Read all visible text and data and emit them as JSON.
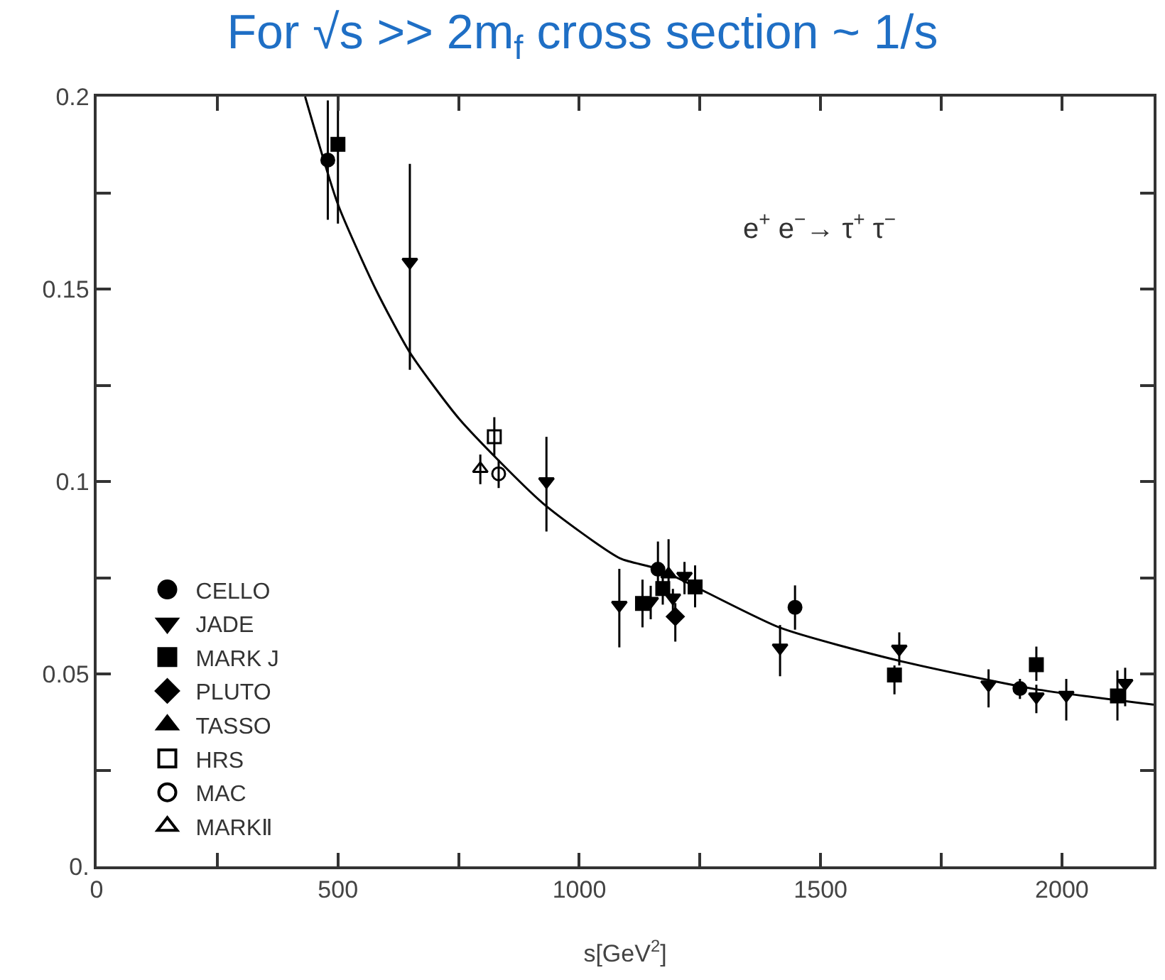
{
  "chart_data": {
    "type": "scatter",
    "title": "For √s >> 2m$_{f}$ cross section ~ 1/s",
    "xlabel": "s[GeV$^{2}$]",
    "annotations": [
      "e$^{+}$ e$^{−}$→ τ$^{+}$ τ$^{−}$"
    ],
    "xlim": [
      0,
      2190
    ],
    "ylim": [
      0,
      0.2
    ],
    "xticks": [
      0,
      {
        "value": 250,
        "label": null
      },
      500,
      {
        "value": 750,
        "label": null
      },
      1000,
      {
        "value": 1250,
        "label": null
      },
      1500,
      {
        "value": 1750,
        "label": null
      },
      2000
    ],
    "yticks": [
      {
        "value": 0,
        "label": "0."
      },
      {
        "value": 0.025,
        "label": null
      },
      0.05,
      {
        "value": 0.075,
        "label": null
      },
      0.1,
      {
        "value": 0.125,
        "label": null
      },
      0.15,
      {
        "value": 0.175,
        "label": null
      },
      0.2
    ],
    "legend": "bottom left",
    "series": [
      {
        "name": "CELLO",
        "color": "#000000",
        "marker": "circle",
        "x": [
          479,
          1163,
          1447,
          1913
        ],
        "values": [
          0.1835,
          0.0772,
          0.0673,
          0.0462
        ],
        "errors": [
          [
            0.168,
            0.199
          ],
          [
            0.0732,
            0.0844
          ],
          [
            0.0615,
            0.073
          ],
          [
            0.0435,
            0.0487
          ]
        ]
      },
      {
        "name": "JADE",
        "color": "#000000",
        "marker": "triangle-down",
        "x": [
          649,
          932,
          1083,
          1148,
          1194,
          1218,
          1416,
          1663,
          1848,
          1947,
          2009,
          2131
        ],
        "values": [
          0.157,
          0.1,
          0.0679,
          0.0689,
          0.0698,
          0.0754,
          0.0568,
          0.0565,
          0.0472,
          0.0441,
          0.0445,
          0.0476
        ],
        "errors": [
          [
            0.129,
            0.1825
          ],
          [
            0.087,
            0.1116
          ],
          [
            0.0569,
            0.0773
          ],
          [
            0.0642,
            0.0729
          ],
          [
            0.0665,
            0.0721
          ],
          [
            0.0707,
            0.0791
          ],
          [
            0.0494,
            0.0627
          ],
          [
            0.0522,
            0.0608
          ],
          [
            0.0413,
            0.0512
          ],
          [
            0.0398,
            0.0472
          ],
          [
            0.0379,
            0.0487
          ],
          [
            0.0416,
            0.0516
          ]
        ]
      },
      {
        "name": "MARK J",
        "color": "#000000",
        "marker": "square",
        "x": [
          500,
          1131,
          1173,
          1240,
          1653,
          1947,
          2115
        ],
        "values": [
          0.1876,
          0.0683,
          0.0722,
          0.0726,
          0.0497,
          0.0524,
          0.0443
        ],
        "errors": [
          [
            0.167,
            0.2
          ],
          [
            0.0621,
            0.0745
          ],
          [
            0.068,
            0.0762
          ],
          [
            0.0673,
            0.0782
          ],
          [
            0.0447,
            0.0522
          ],
          [
            0.0482,
            0.0571
          ],
          [
            0.0379,
            0.0509
          ]
        ]
      },
      {
        "name": "PLUTO",
        "color": "#000000",
        "marker": "diamond",
        "x": [
          1199
        ],
        "values": [
          0.0649
        ],
        "errors": [
          [
            0.0584,
            0.0684
          ]
        ]
      },
      {
        "name": "TASSO",
        "color": "#000000",
        "marker": "triangle",
        "x": [
          1185
        ],
        "values": [
          0.0759
        ],
        "errors": [
          [
            0.0707,
            0.085
          ]
        ]
      },
      {
        "name": "HRS",
        "color": "#000000",
        "marker": "square-open",
        "x": [
          824
        ],
        "values": [
          0.1116
        ],
        "errors": [
          [
            0.1067,
            0.1167
          ]
        ]
      },
      {
        "name": "MAC",
        "color": "#000000",
        "marker": "circle-open",
        "x": [
          833
        ],
        "values": [
          0.102
        ],
        "errors": [
          [
            0.0983,
            0.1056
          ]
        ]
      },
      {
        "name": "MARKⅡ",
        "color": "#000000",
        "marker": "triangle-open",
        "x": [
          795
        ],
        "values": [
          0.1033
        ],
        "errors": [
          [
            0.0993,
            0.107
          ]
        ]
      },
      {
        "type": "line",
        "color": "#000000",
        "marker": "none",
        "line_style": "solid",
        "x": [
          432,
          500,
          578,
          649,
          753,
          924,
          1085,
          1163,
          1416,
          1660,
          1942,
          2190
        ],
        "values": [
          0.2,
          0.172,
          0.15,
          0.1335,
          0.116,
          0.0944,
          0.08,
          0.0773,
          0.062,
          0.0535,
          0.0461,
          0.042
        ]
      }
    ]
  }
}
